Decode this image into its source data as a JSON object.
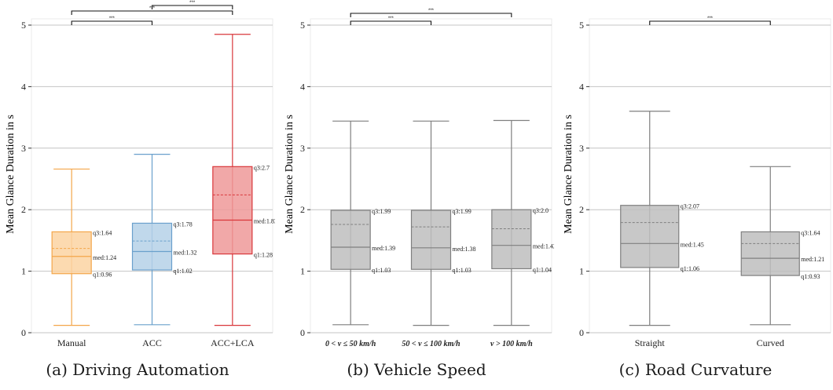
{
  "chart_data": [
    {
      "type": "box",
      "caption": "(a) Driving Automation",
      "ylabel": "Mean Glance Duration in s",
      "ylim": [
        0,
        5
      ],
      "yticks": [
        0,
        1,
        2,
        3,
        4,
        5
      ],
      "grid": true,
      "categories": [
        "Manual",
        "ACC",
        "ACC+LCA"
      ],
      "colors": [
        "#f4a64a",
        "#6aa0cc",
        "#d9373b"
      ],
      "fills": [
        "#fbd3a2",
        "#b5d1e8",
        "#ee9999"
      ],
      "boxes": [
        {
          "category": "Manual",
          "whisker_low": 0.12,
          "q1": 0.96,
          "median": 1.24,
          "mean": 1.37,
          "q3": 1.64,
          "whisker_high": 2.66,
          "labels": [
            "q3:1.64",
            "med:1.24",
            "q1:0.96"
          ]
        },
        {
          "category": "ACC",
          "whisker_low": 0.13,
          "q1": 1.02,
          "median": 1.32,
          "mean": 1.49,
          "q3": 1.78,
          "whisker_high": 2.9,
          "labels": [
            "q3:1.78",
            "med:1.32",
            "q1:1.02"
          ]
        },
        {
          "category": "ACC+LCA",
          "whisker_low": 0.12,
          "q1": 1.28,
          "median": 1.83,
          "mean": 2.24,
          "q3": 2.7,
          "whisker_high": 4.85,
          "labels": [
            "q3:2.7",
            "med:1.83",
            "q1:1.28"
          ]
        }
      ],
      "significance": [
        {
          "from": 0,
          "to": 1,
          "label": "***"
        },
        {
          "from": 0,
          "to": 2,
          "label": "***"
        },
        {
          "from": 1,
          "to": 2,
          "label": "***"
        }
      ]
    },
    {
      "type": "box",
      "caption": "(b) Vehicle Speed",
      "ylabel": "Mean Glance Duration in s",
      "ylim": [
        0,
        5
      ],
      "yticks": [
        0,
        1,
        2,
        3,
        4,
        5
      ],
      "grid": true,
      "categories": [
        "0 < v ≤ 50 km/h",
        "50 < v ≤ 100 km/h",
        "v > 100 km/h"
      ],
      "colors": [
        "#7f7f7f",
        "#7f7f7f",
        "#7f7f7f"
      ],
      "fills": [
        "#bebebe",
        "#bebebe",
        "#bebebe"
      ],
      "boxes": [
        {
          "category": "0 < v ≤ 50 km/h",
          "whisker_low": 0.13,
          "q1": 1.03,
          "median": 1.39,
          "mean": 1.76,
          "q3": 1.99,
          "whisker_high": 3.44,
          "labels": [
            "q3:1.99",
            "med:1.39",
            "q1:1.03"
          ]
        },
        {
          "category": "50 < v ≤ 100 km/h",
          "whisker_low": 0.12,
          "q1": 1.03,
          "median": 1.38,
          "mean": 1.72,
          "q3": 1.99,
          "whisker_high": 3.44,
          "labels": [
            "q3:1.99",
            "med:1.38",
            "q1:1.03"
          ]
        },
        {
          "category": "v > 100 km/h",
          "whisker_low": 0.12,
          "q1": 1.04,
          "median": 1.42,
          "mean": 1.69,
          "q3": 2.0,
          "whisker_high": 3.45,
          "labels": [
            "q3:2.0",
            "med:1.42",
            "q1:1.04"
          ]
        }
      ],
      "significance": [
        {
          "from": 0,
          "to": 1,
          "label": "***"
        },
        {
          "from": 0,
          "to": 2,
          "label": "***"
        }
      ]
    },
    {
      "type": "box",
      "caption": "(c) Road Curvature",
      "ylabel": "Mean Glance Duration in s",
      "ylim": [
        0,
        5
      ],
      "yticks": [
        0,
        1,
        2,
        3,
        4,
        5
      ],
      "grid": true,
      "categories": [
        "Straight",
        "Curved"
      ],
      "colors": [
        "#7f7f7f",
        "#7f7f7f"
      ],
      "fills": [
        "#bebebe",
        "#bebebe"
      ],
      "boxes": [
        {
          "category": "Straight",
          "whisker_low": 0.12,
          "q1": 1.06,
          "median": 1.45,
          "mean": 1.79,
          "q3": 2.07,
          "whisker_high": 3.6,
          "labels": [
            "q3:2.07",
            "med:1.45",
            "q1:1.06"
          ]
        },
        {
          "category": "Curved",
          "whisker_low": 0.13,
          "q1": 0.93,
          "median": 1.21,
          "mean": 1.45,
          "q3": 1.64,
          "whisker_high": 2.7,
          "labels": [
            "q3:1.64",
            "med:1.21",
            "q1:0.93"
          ]
        }
      ],
      "significance": [
        {
          "from": 0,
          "to": 1,
          "label": "***"
        }
      ]
    }
  ]
}
